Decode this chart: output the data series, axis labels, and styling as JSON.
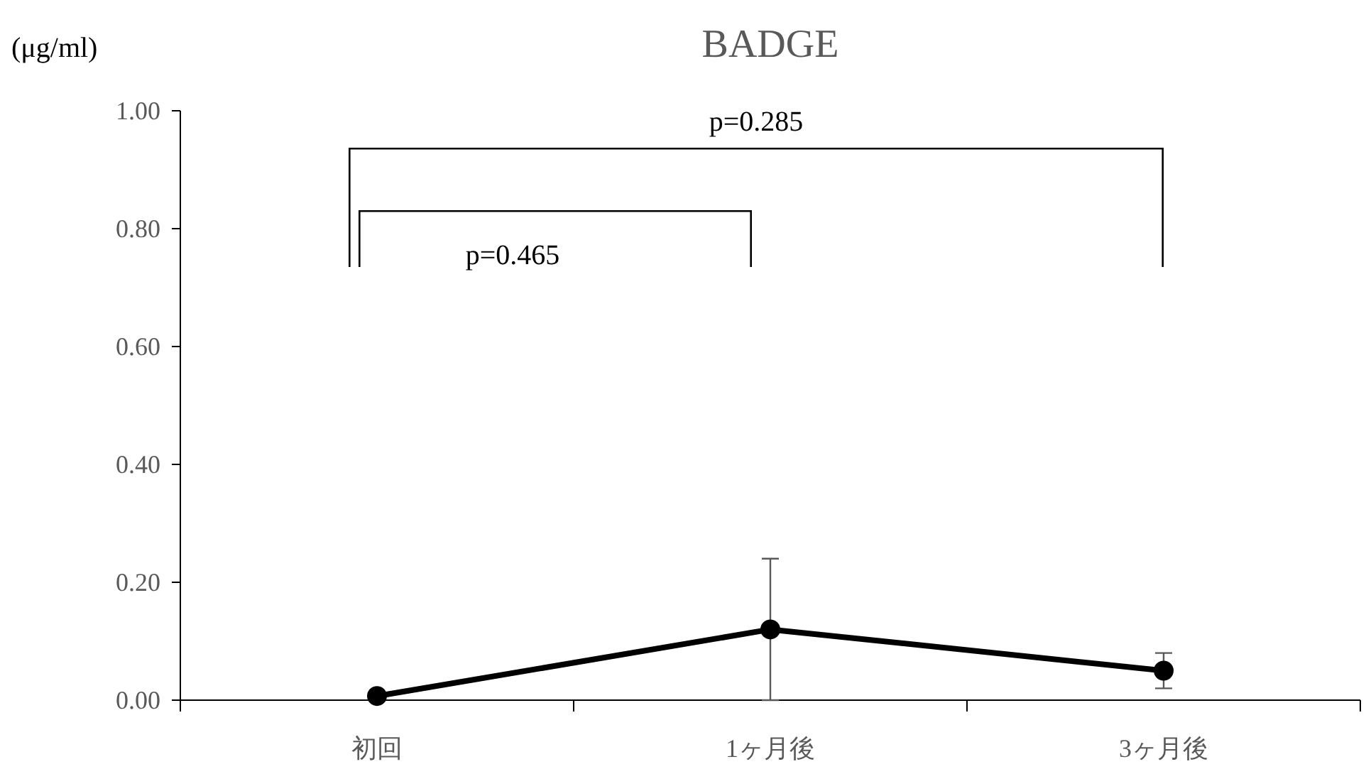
{
  "chart_data": {
    "type": "line",
    "title": "BADGE",
    "ylabel": "(μg/ml)",
    "categories": [
      "初回",
      "1ヶ月後",
      "3ヶ月後"
    ],
    "series": [
      {
        "color": "#000000",
        "values": [
          0.007,
          0.12,
          0.05
        ],
        "errors": [
          null,
          0.12,
          0.03
        ]
      }
    ],
    "ylim": [
      0,
      1
    ],
    "yticks": [
      {
        "value": 0,
        "label": "0.00"
      },
      {
        "value": 0.2,
        "label": "0.20"
      },
      {
        "value": 0.4,
        "label": "0.40"
      },
      {
        "value": 0.6,
        "label": "0.60"
      },
      {
        "value": 0.8,
        "label": "0.80"
      },
      {
        "value": 1,
        "label": "1.00"
      }
    ],
    "marker": "circle",
    "line_style": "solid",
    "grid": false,
    "annotations": [
      "p=0.465",
      "p=0.285"
    ]
  }
}
